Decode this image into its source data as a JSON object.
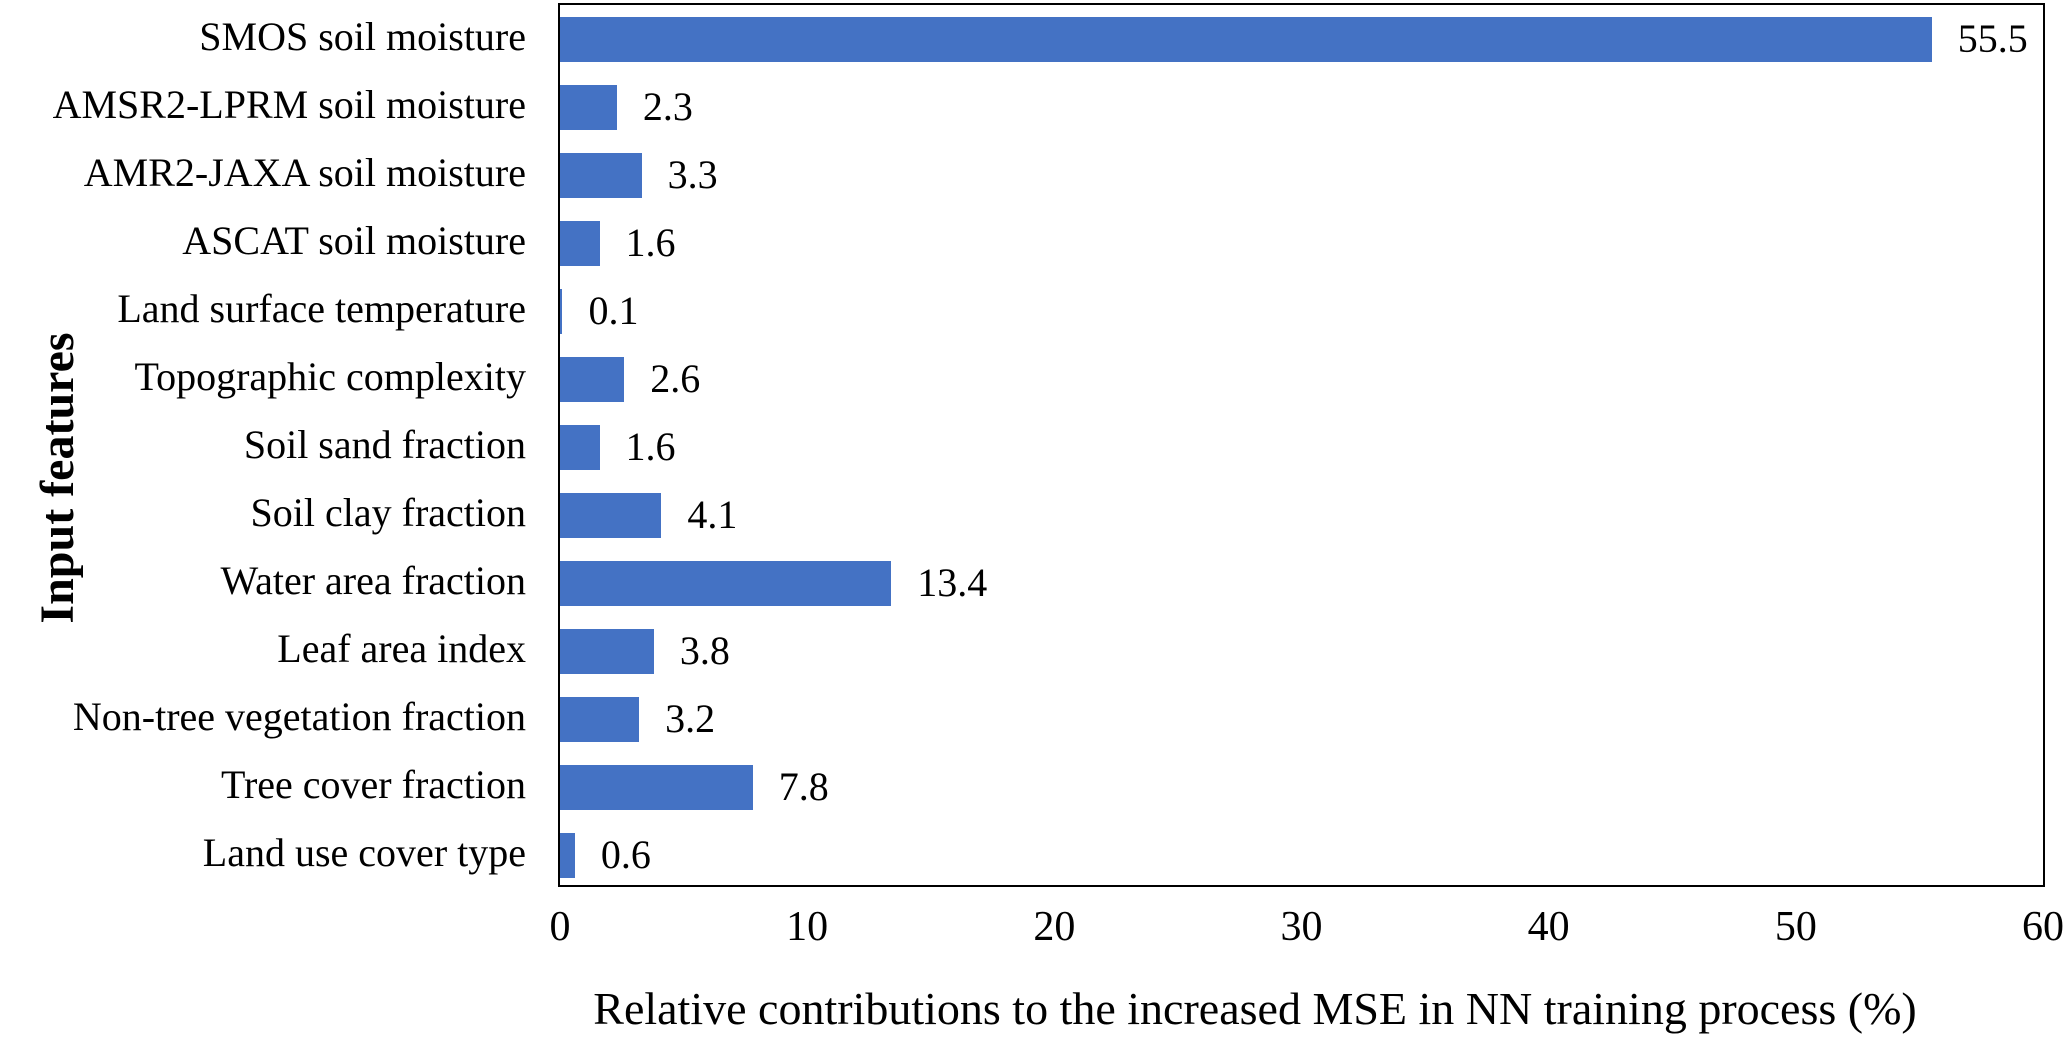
{
  "chart_data": {
    "type": "bar",
    "orientation": "horizontal",
    "title": "",
    "xlabel": "Relative contributions to the increased MSE in NN training process (%)",
    "ylabel": "Input features",
    "xlim": [
      0,
      60
    ],
    "xticks": [
      "0",
      "10",
      "20",
      "30",
      "40",
      "50",
      "60"
    ],
    "grid": false,
    "legend": "none",
    "bar_color": "#4472C4",
    "axis_color": "#000000",
    "text_color": "#000000",
    "categories": [
      "SMOS soil moisture",
      "AMSR2-LPRM soil moisture",
      "AMR2-JAXA soil moisture",
      "ASCAT soil moisture",
      "Land surface temperature",
      "Topographic complexity",
      "Soil sand fraction",
      "Soil clay fraction",
      "Water area fraction",
      "Leaf area index",
      "Non-tree vegetation fraction",
      "Tree cover fraction",
      "Land use cover type"
    ],
    "values": [
      55.5,
      2.3,
      3.3,
      1.6,
      0.1,
      2.6,
      1.6,
      4.1,
      13.4,
      3.8,
      3.2,
      7.8,
      0.6
    ],
    "data_labels": [
      "55.5",
      "2.3",
      "3.3",
      "1.6",
      "0.1",
      "2.6",
      "1.6",
      "4.1",
      "13.4",
      "3.8",
      "3.2",
      "7.8",
      "0.6"
    ]
  }
}
